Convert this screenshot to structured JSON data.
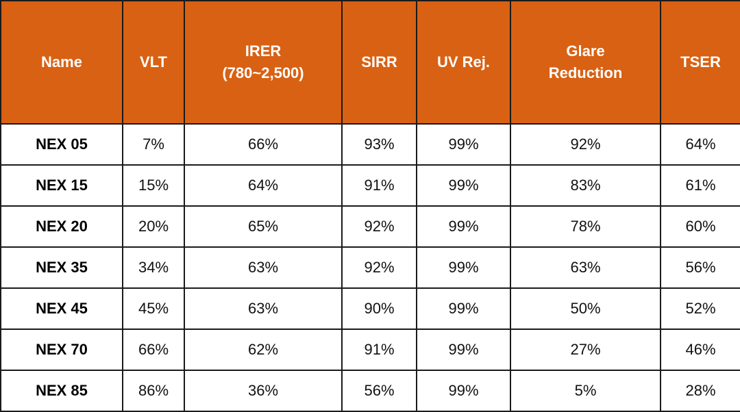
{
  "table": {
    "headers": [
      "Name",
      "VLT",
      "IRER\n(780~2,500)",
      "SIRR",
      "UV Rej.",
      "Glare\nReduction",
      "TSER"
    ],
    "rows": [
      [
        "NEX 05",
        "7%",
        "66%",
        "93%",
        "99%",
        "92%",
        "64%"
      ],
      [
        "NEX 15",
        "15%",
        "64%",
        "91%",
        "99%",
        "83%",
        "61%"
      ],
      [
        "NEX 20",
        "20%",
        "65%",
        "92%",
        "99%",
        "78%",
        "60%"
      ],
      [
        "NEX 35",
        "34%",
        "63%",
        "92%",
        "99%",
        "63%",
        "56%"
      ],
      [
        "NEX 45",
        "45%",
        "63%",
        "90%",
        "99%",
        "50%",
        "52%"
      ],
      [
        "NEX 70",
        "66%",
        "62%",
        "91%",
        "99%",
        "27%",
        "46%"
      ],
      [
        "NEX 85",
        "86%",
        "36%",
        "56%",
        "99%",
        "5%",
        "28%"
      ]
    ]
  },
  "colors": {
    "header_bg": "#d96113",
    "header_text": "#ffffff",
    "border": "#1a1a1a"
  }
}
